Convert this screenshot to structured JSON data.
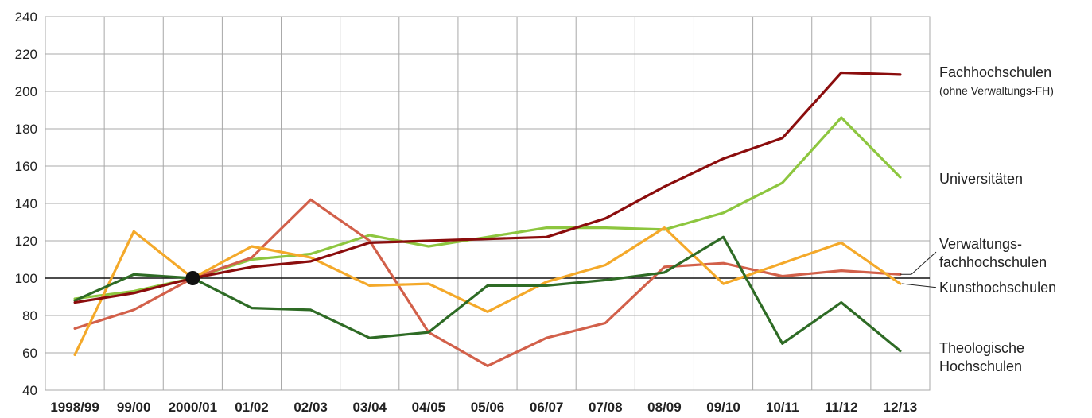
{
  "chart_data": {
    "type": "line",
    "categories": [
      "1998/99",
      "99/00",
      "2000/01",
      "01/02",
      "02/03",
      "03/04",
      "04/05",
      "05/06",
      "06/07",
      "07/08",
      "08/09",
      "09/10",
      "10/11",
      "11/12",
      "12/13"
    ],
    "ylim": [
      40,
      240
    ],
    "yticks": [
      40,
      60,
      80,
      100,
      120,
      140,
      160,
      180,
      200,
      220,
      240
    ],
    "grid": true,
    "reference_line": 100,
    "base_marker_category": "2000/01",
    "series": [
      {
        "key": "uni",
        "color": "#8dc63f",
        "values": [
          89,
          93,
          100,
          110,
          113,
          123,
          117,
          122,
          127,
          127,
          126,
          135,
          151,
          186,
          154
        ]
      },
      {
        "key": "vfh",
        "color": "#d2604a",
        "values": [
          73,
          83,
          100,
          111,
          142,
          120,
          71,
          53,
          68,
          76,
          106,
          108,
          101,
          104,
          102
        ]
      },
      {
        "key": "kunst",
        "color": "#f4a92a",
        "values": [
          59,
          125,
          100,
          117,
          111,
          96,
          97,
          82,
          98,
          107,
          127,
          97,
          108,
          119,
          97
        ]
      },
      {
        "key": "theo",
        "color": "#2e6b25",
        "values": [
          88,
          102,
          100,
          84,
          83,
          68,
          71,
          96,
          96,
          99,
          103,
          122,
          65,
          87,
          61
        ]
      },
      {
        "key": "fh",
        "color": "#8b0d0d",
        "values": [
          87,
          92,
          100,
          106,
          109,
          119,
          120,
          121,
          122,
          132,
          149,
          164,
          175,
          210,
          209
        ]
      }
    ],
    "labels": {
      "fh": [
        "Fachhochschulen",
        "(ohne Verwaltungs-FH)"
      ],
      "uni": [
        "Universitäten"
      ],
      "vfh": [
        "Verwaltungs-",
        "fachhochschulen"
      ],
      "kunst": [
        "Kunsthochschulen"
      ],
      "theo": [
        "Theologische",
        "Hochschulen"
      ]
    }
  }
}
